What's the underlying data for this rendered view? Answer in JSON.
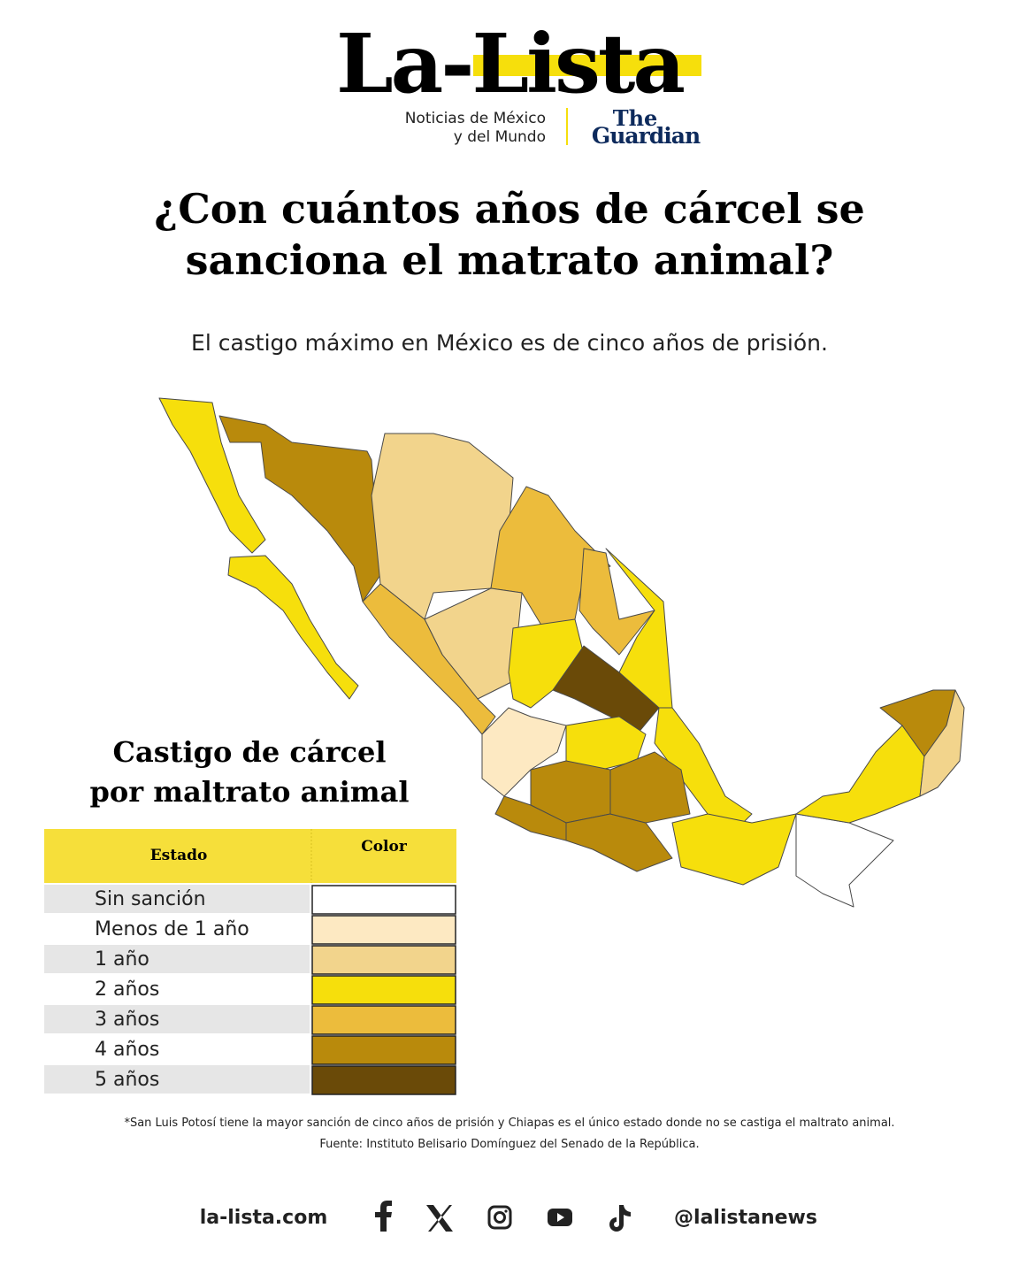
{
  "header": {
    "logo": "La-Lista",
    "tagline_1": "Noticias de México",
    "tagline_2": "y del Mundo",
    "partner_1": "The",
    "partner_2": "Guardian"
  },
  "title_lines": [
    "¿Con cuántos años de cárcel se",
    "sanciona el matrato animal?"
  ],
  "subtitle": "El castigo máximo en México es de cinco años de prisión.",
  "legend": {
    "title_lines": [
      "Castigo de cárcel",
      "por maltrato animal"
    ],
    "headers": [
      "Estado",
      "Color"
    ],
    "rows": [
      {
        "label": "Sin sanción",
        "color": "#ffffff"
      },
      {
        "label": "Menos de 1 año",
        "color": "#fde9c2"
      },
      {
        "label": "1 año",
        "color": "#f2d48c"
      },
      {
        "label": "2 años",
        "color": "#f6df0c"
      },
      {
        "label": "3 años",
        "color": "#ecbc3c"
      },
      {
        "label": "4 años",
        "color": "#b98a0c"
      },
      {
        "label": "5 años",
        "color": "#6a4a08"
      }
    ]
  },
  "notes": [
    "*San Luis Potosí tiene la mayor sanción de cinco años de prisión y Chiapas es el único estado donde no se castiga el maltrato animal.",
    "Fuente: Instituto Belisario Domínguez del Senado de la República."
  ],
  "footer": {
    "site": "la-lista.com",
    "handle": "@lalistanews"
  }
}
